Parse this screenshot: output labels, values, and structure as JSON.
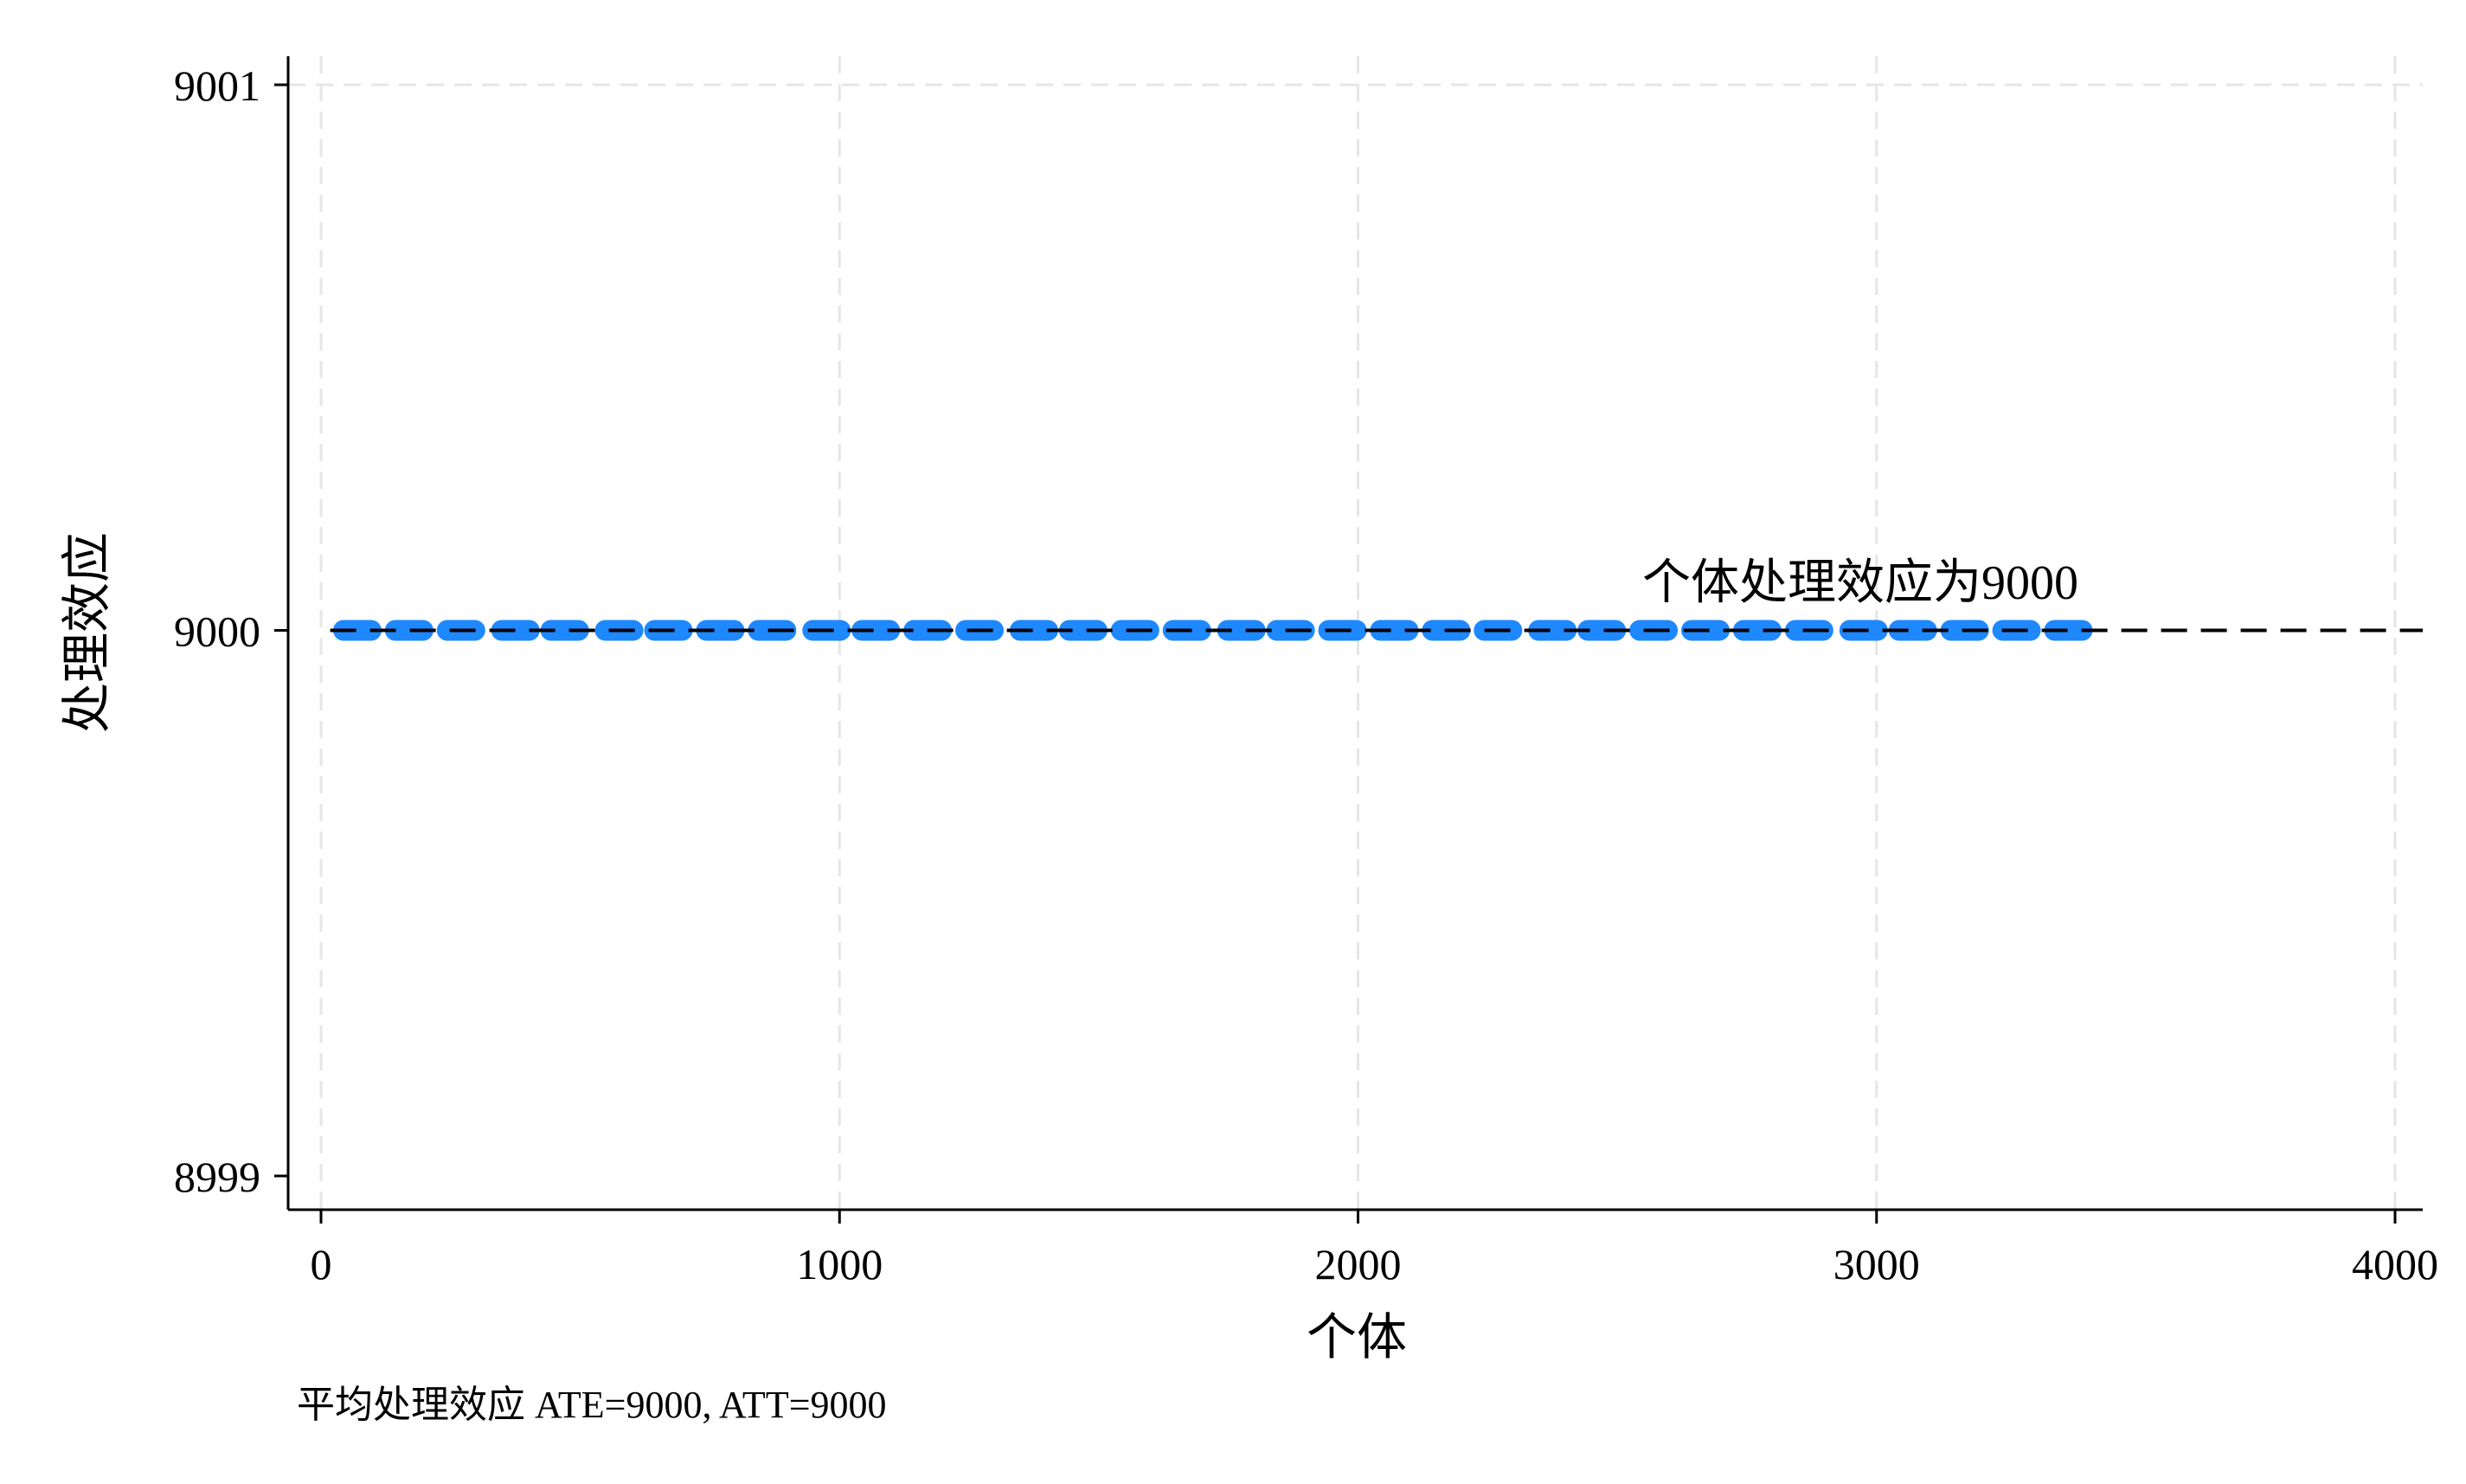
{
  "chart_data": {
    "type": "scatter",
    "title": "",
    "xlabel": "个体",
    "ylabel": "处理效应",
    "xlim": [
      0,
      4000
    ],
    "ylim": [
      8999,
      9001
    ],
    "x_ticks": [
      0,
      1000,
      2000,
      3000,
      4000
    ],
    "y_ticks": [
      8999,
      9000,
      9001
    ],
    "x_tick_labels": [
      "0",
      "1000",
      "2000",
      "3000",
      "4000"
    ],
    "y_tick_labels": [
      "8999",
      "9000",
      "9001"
    ],
    "grid": true,
    "series": [
      {
        "color": "#1e88ff",
        "point_value": 9000,
        "x_start": 1,
        "x_end": 3400,
        "points": [
          {
            "x": 70,
            "y": 9000
          },
          {
            "x": 170,
            "y": 9000
          },
          {
            "x": 270,
            "y": 9000
          },
          {
            "x": 375,
            "y": 9000
          },
          {
            "x": 470,
            "y": 9000
          },
          {
            "x": 575,
            "y": 9000
          },
          {
            "x": 670,
            "y": 9000
          },
          {
            "x": 770,
            "y": 9000
          },
          {
            "x": 870,
            "y": 9000
          },
          {
            "x": 975,
            "y": 9000
          },
          {
            "x": 1070,
            "y": 9000
          },
          {
            "x": 1170,
            "y": 9000
          },
          {
            "x": 1270,
            "y": 9000
          },
          {
            "x": 1375,
            "y": 9000
          },
          {
            "x": 1470,
            "y": 9000
          },
          {
            "x": 1570,
            "y": 9000
          },
          {
            "x": 1670,
            "y": 9000
          },
          {
            "x": 1775,
            "y": 9000
          },
          {
            "x": 1870,
            "y": 9000
          },
          {
            "x": 1970,
            "y": 9000
          },
          {
            "x": 2070,
            "y": 9000
          },
          {
            "x": 2170,
            "y": 9000
          },
          {
            "x": 2270,
            "y": 9000
          },
          {
            "x": 2375,
            "y": 9000
          },
          {
            "x": 2470,
            "y": 9000
          },
          {
            "x": 2570,
            "y": 9000
          },
          {
            "x": 2670,
            "y": 9000
          },
          {
            "x": 2770,
            "y": 9000
          },
          {
            "x": 2870,
            "y": 9000
          },
          {
            "x": 2975,
            "y": 9000
          },
          {
            "x": 3070,
            "y": 9000
          },
          {
            "x": 3170,
            "y": 9000
          },
          {
            "x": 3270,
            "y": 9000
          },
          {
            "x": 3370,
            "y": 9000
          }
        ]
      }
    ],
    "reference_line": {
      "y": 9000,
      "style": "dashed",
      "color": "#000000"
    },
    "annotations": [
      {
        "text": "个体处理效应为9000",
        "x": 2550,
        "y": 9000
      }
    ],
    "note": "平均处理效应 ATE=9000, ATT=9000",
    "colors": {
      "points": "#1e88ff",
      "axis": "#000000",
      "grid": "#e6e6e6"
    }
  }
}
